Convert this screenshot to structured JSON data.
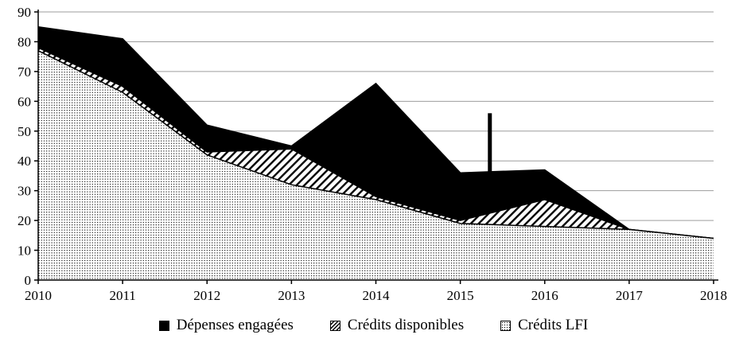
{
  "chart_data": {
    "type": "area",
    "title": "",
    "xlabel": "",
    "ylabel": "",
    "x": [
      2010,
      2011,
      2012,
      2013,
      2014,
      2015,
      2016,
      2017,
      2018
    ],
    "series": [
      {
        "name": "Dépenses engagées",
        "fill": "solid-black",
        "values": [
          85,
          81,
          52,
          45,
          66,
          36,
          37,
          17,
          14
        ]
      },
      {
        "name": "Crédits disponibles",
        "fill": "diagonal-hatch",
        "values": [
          78,
          65,
          43,
          44,
          28,
          20,
          27,
          17,
          14
        ]
      },
      {
        "name": "Crédits LFI",
        "fill": "dots",
        "values": [
          77,
          63,
          42,
          32,
          27,
          19,
          18,
          17,
          14
        ]
      }
    ],
    "annotation_bar": {
      "x": 2015.35,
      "y_from": 35,
      "y_to": 56
    },
    "ylim": [
      0,
      90
    ],
    "y_ticks": [
      0,
      10,
      20,
      30,
      40,
      50,
      60,
      70,
      80,
      90
    ],
    "x_ticks": [
      2010,
      2011,
      2012,
      2013,
      2014,
      2015,
      2016,
      2017,
      2018
    ],
    "grid": "horizontal",
    "legend_position": "bottom"
  },
  "colors": {
    "foreground": "#000000",
    "background": "#ffffff",
    "gridline": "#9d9d9d"
  }
}
